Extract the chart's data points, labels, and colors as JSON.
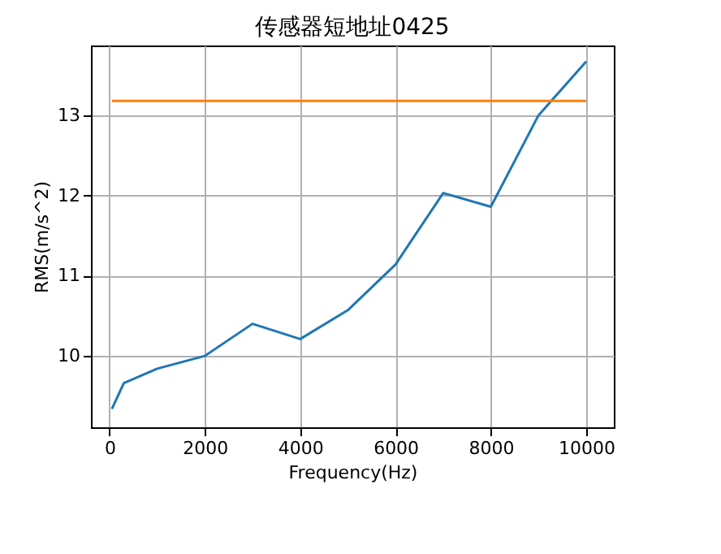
{
  "chart_data": {
    "type": "line",
    "title": "传感器短地址0425",
    "xlabel": "Frequency(Hz)",
    "ylabel": "RMS(m/s^2)",
    "series": [
      {
        "color": "#1f77b4",
        "x": [
          50,
          300,
          1000,
          2000,
          3000,
          4000,
          5000,
          6000,
          7000,
          8000,
          9000,
          10000
        ],
        "values": [
          9.34,
          9.66,
          9.84,
          10.0,
          10.4,
          10.21,
          10.57,
          11.14,
          12.03,
          11.86,
          13.0,
          13.67
        ]
      },
      {
        "color": "#ff7f0e",
        "x": [
          50,
          10000
        ],
        "values": [
          13.18,
          13.18
        ]
      }
    ],
    "xlim": [
      -390,
      10580
    ],
    "ylim": [
      9.11,
      13.87
    ],
    "xticks": [
      0,
      2000,
      4000,
      6000,
      8000,
      10000
    ],
    "yticks": [
      10,
      11,
      12,
      13
    ],
    "grid": true
  }
}
